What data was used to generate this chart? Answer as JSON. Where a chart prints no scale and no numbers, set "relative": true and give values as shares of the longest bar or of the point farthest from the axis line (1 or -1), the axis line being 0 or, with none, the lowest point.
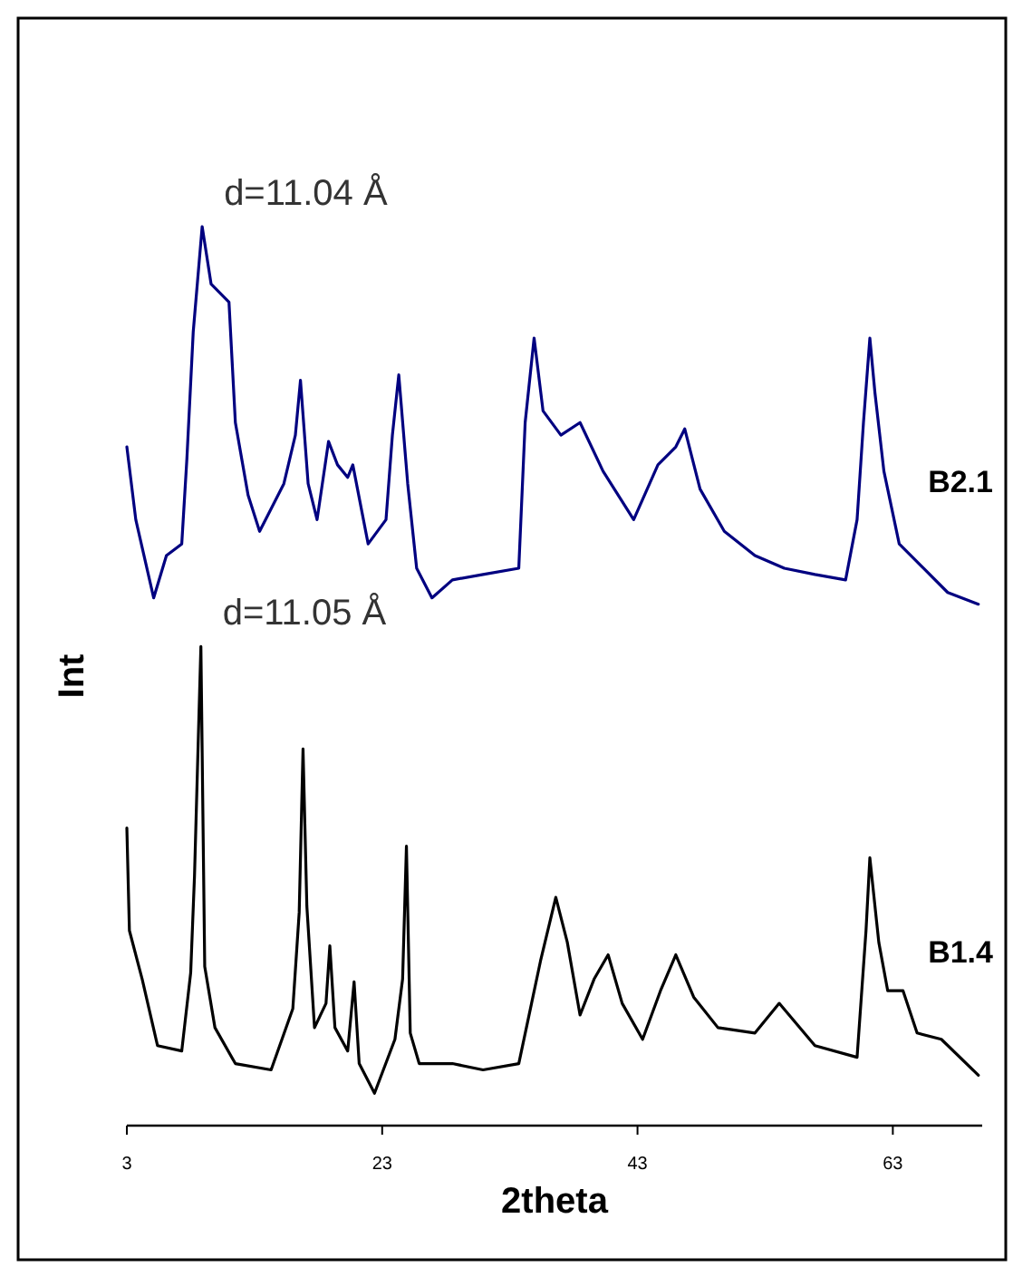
{
  "chart_data": {
    "type": "line",
    "xlabel": "2theta",
    "ylabel": "Int",
    "relative": true,
    "xlim": [
      3,
      70
    ],
    "xticks": [
      3,
      23,
      43,
      63
    ],
    "grid": false,
    "legend": false,
    "marker": "none",
    "line_style": "solid",
    "annotations": [
      {
        "text": "d=11.04 Å",
        "x": 8.9,
        "y": 1
      },
      {
        "text": "d=11.05 Å",
        "x": 8.8,
        "y": 0.533
      }
    ],
    "series": [
      {
        "name": "B2.1",
        "color": "#000080",
        "x": [
          3.0,
          3.7,
          5.1,
          6.1,
          7.3,
          7.7,
          8.2,
          8.9,
          9.6,
          11.0,
          11.5,
          12.5,
          13.4,
          15.3,
          16.2,
          16.6,
          17.2,
          17.9,
          18.8,
          19.5,
          20.3,
          20.7,
          21.9,
          23.3,
          23.8,
          24.3,
          25.0,
          25.7,
          26.9,
          28.5,
          30.9,
          33.7,
          34.2,
          34.9,
          35.6,
          37.0,
          38.5,
          40.3,
          42.7,
          44.6,
          46.0,
          46.7,
          47.9,
          49.8,
          52.2,
          54.5,
          56.9,
          59.3,
          60.2,
          60.7,
          61.2,
          61.6,
          62.3,
          63.5,
          65.4,
          67.3,
          69.7
        ],
        "values": [
          0.755,
          0.674,
          0.587,
          0.634,
          0.647,
          0.741,
          0.883,
          1,
          0.936,
          0.916,
          0.782,
          0.701,
          0.661,
          0.714,
          0.768,
          0.829,
          0.714,
          0.674,
          0.761,
          0.735,
          0.721,
          0.735,
          0.647,
          0.674,
          0.768,
          0.835,
          0.714,
          0.62,
          0.587,
          0.607,
          0.613,
          0.62,
          0.782,
          0.876,
          0.795,
          0.768,
          0.782,
          0.728,
          0.674,
          0.735,
          0.755,
          0.775,
          0.708,
          0.661,
          0.634,
          0.62,
          0.613,
          0.607,
          0.674,
          0.782,
          0.876,
          0.815,
          0.728,
          0.647,
          0.62,
          0.593,
          0.58
        ]
      },
      {
        "name": "B1.4",
        "color": "#000000",
        "x": [
          3.0,
          3.2,
          4.2,
          5.4,
          7.3,
          8.0,
          8.3,
          8.6,
          8.8,
          9.1,
          9.9,
          11.5,
          14.3,
          16.0,
          16.5,
          16.8,
          17.1,
          17.7,
          18.6,
          18.9,
          19.3,
          20.3,
          20.8,
          21.2,
          22.4,
          24.0,
          24.6,
          24.9,
          25.2,
          25.9,
          28.5,
          30.9,
          33.7,
          34.7,
          35.4,
          36.6,
          37.5,
          38.5,
          39.6,
          40.7,
          41.8,
          43.4,
          44.8,
          46.0,
          47.4,
          49.3,
          52.2,
          54.1,
          56.9,
          60.2,
          60.9,
          61.2,
          61.9,
          62.6,
          63.8,
          64.9,
          66.8,
          69.7
        ],
        "values": [
          0.331,
          0.217,
          0.163,
          0.089,
          0.083,
          0.17,
          0.278,
          0.432,
          0.533,
          0.177,
          0.109,
          0.069,
          0.062,
          0.13,
          0.237,
          0.419,
          0.244,
          0.109,
          0.136,
          0.2,
          0.109,
          0.083,
          0.16,
          0.069,
          0.036,
          0.096,
          0.163,
          0.311,
          0.103,
          0.069,
          0.069,
          0.062,
          0.069,
          0.136,
          0.183,
          0.254,
          0.204,
          0.123,
          0.163,
          0.19,
          0.136,
          0.096,
          0.15,
          0.19,
          0.143,
          0.109,
          0.103,
          0.136,
          0.089,
          0.076,
          0.217,
          0.298,
          0.204,
          0.15,
          0.15,
          0.103,
          0.096,
          0.056
        ]
      }
    ]
  }
}
